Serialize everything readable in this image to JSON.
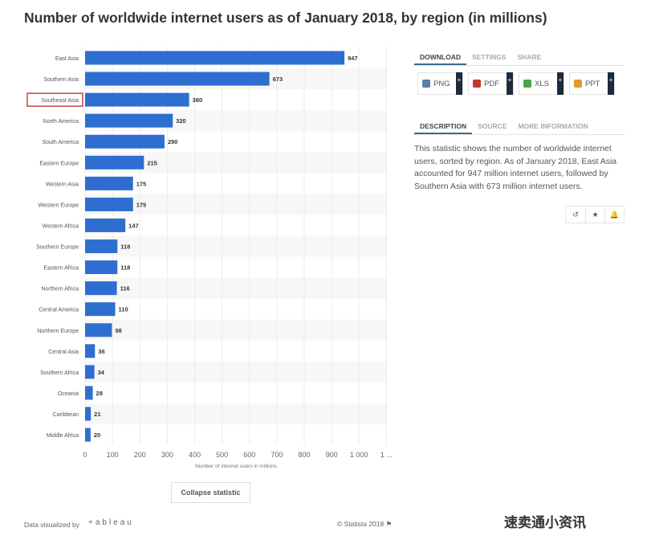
{
  "title": "Number of worldwide internet users as of January 2018, by region (in millions)",
  "chart_data": {
    "type": "bar",
    "orientation": "horizontal",
    "categories": [
      "East Asia",
      "Southern Asia",
      "Southeast Asia",
      "North America",
      "South America",
      "Eastern Europe",
      "Western Asia",
      "Western Europe",
      "Western Africa",
      "Southern Europe",
      "Eastern Africa",
      "Northern Africa",
      "Central America",
      "Northern Europe",
      "Central Asia",
      "Southern Africa",
      "Oceania",
      "Caribbean",
      "Middle Africa"
    ],
    "values": [
      947,
      673,
      380,
      320,
      290,
      215,
      175,
      175,
      147,
      118,
      118,
      116,
      110,
      98,
      36,
      34,
      28,
      21,
      20
    ],
    "highlighted": "Southeast Asia",
    "xlabel": "Number of internet users in millions",
    "xticks": [
      "0",
      "100",
      "200",
      "300",
      "400",
      "500",
      "600",
      "700",
      "800",
      "900",
      "1 000",
      "1 ..."
    ],
    "xlim": [
      0,
      1100
    ],
    "grid": true,
    "bar_color": "#2f6ed1",
    "highlight_color": "#c0262c"
  },
  "right": {
    "tabs": [
      "DOWNLOAD",
      "SETTINGS",
      "SHARE"
    ],
    "downloads": [
      {
        "label": "PNG",
        "color": "#5a7fa8"
      },
      {
        "label": "PDF",
        "color": "#c0392b"
      },
      {
        "label": "XLS",
        "color": "#4fa14a"
      },
      {
        "label": "PPT",
        "color": "#e09a2b"
      }
    ],
    "plus": "+",
    "info_tabs": [
      "DESCRIPTION",
      "SOURCE",
      "MORE INFORMATION"
    ],
    "description": "This statistic shows the number of worldwide internet users, sorted by region. As of January 2018, East Asia accounted for 947 million internet users, followed by Southern Asia with 673 million internet users.",
    "actions": [
      "↺",
      "★",
      "🔔"
    ]
  },
  "collapse": "Collapse statistic",
  "credit": "Data visualized by",
  "tableau": "+ableau",
  "copyright": "© Statista 2018 ⚑",
  "watermark": "速卖通小资讯"
}
